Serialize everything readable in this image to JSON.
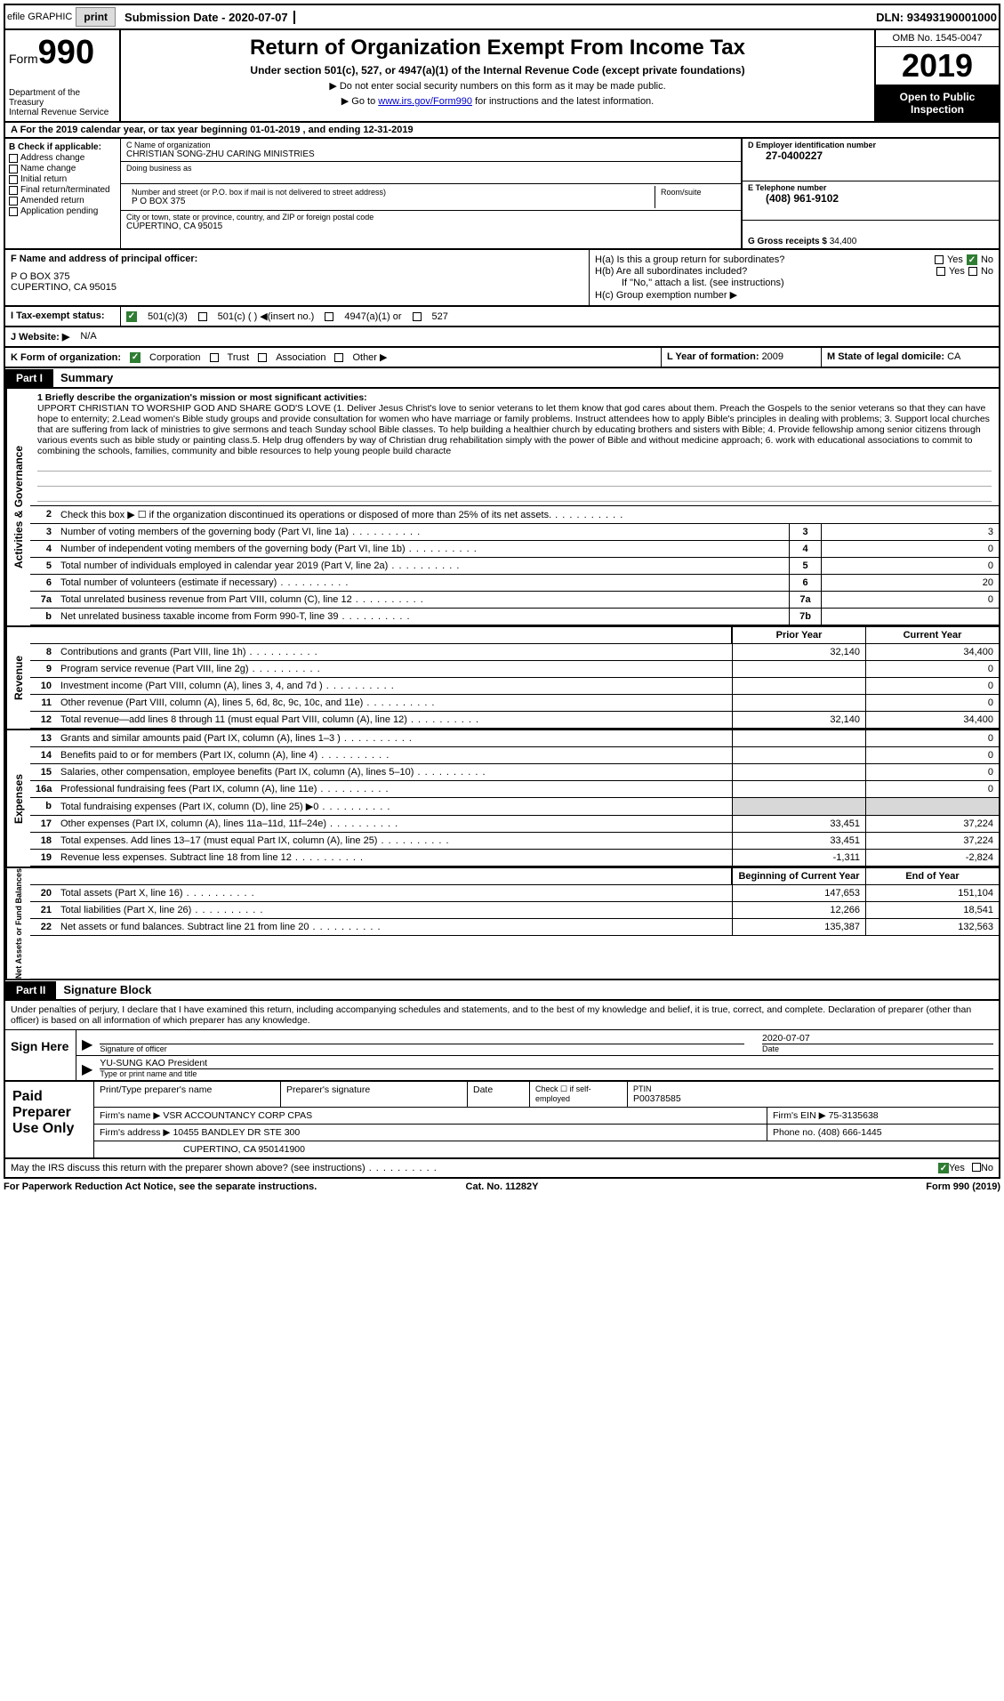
{
  "topbar": {
    "efile": "efile GRAPHIC",
    "print": "print",
    "submission_label": "Submission Date - ",
    "submission_date": "2020-07-07",
    "dln_label": "DLN: ",
    "dln": "93493190001000"
  },
  "header": {
    "form_label": "Form",
    "form_number": "990",
    "dept1": "Department of the Treasury",
    "dept2": "Internal Revenue Service",
    "title": "Return of Organization Exempt From Income Tax",
    "subtitle": "Under section 501(c), 527, or 4947(a)(1) of the Internal Revenue Code (except private foundations)",
    "note1": "▶ Do not enter social security numbers on this form as it may be made public.",
    "note2_pre": "▶ Go to ",
    "note2_link": "www.irs.gov/Form990",
    "note2_post": " for instructions and the latest information.",
    "omb": "OMB No. 1545-0047",
    "year": "2019",
    "inspection": "Open to Public Inspection"
  },
  "rowA": "A   For the 2019 calendar year, or tax year beginning 01-01-2019    , and ending 12-31-2019",
  "colB": {
    "header": "B Check if applicable:",
    "items": [
      "Address change",
      "Name change",
      "Initial return",
      "Final return/terminated",
      "Amended return",
      "Application pending"
    ]
  },
  "colC": {
    "name_label": "C Name of organization",
    "name": "CHRISTIAN SONG-ZHU CARING MINISTRIES",
    "dba_label": "Doing business as",
    "addr_label": "Number and street (or P.O. box if mail is not delivered to street address)",
    "addr": "P O BOX 375",
    "room_label": "Room/suite",
    "city_label": "City or town, state or province, country, and ZIP or foreign postal code",
    "city": "CUPERTINO, CA  95015"
  },
  "colD": {
    "ein_label": "D Employer identification number",
    "ein": "27-0400227",
    "phone_label": "E Telephone number",
    "phone": "(408) 961-9102",
    "gross_label": "G Gross receipts $ ",
    "gross": "34,400"
  },
  "rowF": {
    "label": "F  Name and address of principal officer:",
    "line1": "P O BOX 375",
    "line2": "CUPERTINO, CA  95015"
  },
  "rowH": {
    "ha": "H(a)  Is this a group return for subordinates?",
    "hb": "H(b)  Are all subordinates included?",
    "hb_note": "If \"No,\" attach a list. (see instructions)",
    "hc": "H(c)  Group exemption number ▶",
    "yes": "Yes",
    "no": "No"
  },
  "rowI": {
    "label": "I   Tax-exempt status:",
    "opt1": "501(c)(3)",
    "opt2": "501(c) (   ) ◀(insert no.)",
    "opt3": "4947(a)(1) or",
    "opt4": "527"
  },
  "rowJ": {
    "label": "J   Website: ▶",
    "value": "N/A"
  },
  "rowK": {
    "label": "K Form of organization:",
    "opts": [
      "Corporation",
      "Trust",
      "Association",
      "Other ▶"
    ],
    "L_label": "L Year of formation: ",
    "L_val": "2009",
    "M_label": "M State of legal domicile: ",
    "M_val": "CA"
  },
  "parts": {
    "p1": "Part I",
    "p1_title": "Summary",
    "p2": "Part II",
    "p2_title": "Signature Block"
  },
  "vtabs": {
    "ag": "Activities & Governance",
    "rev": "Revenue",
    "exp": "Expenses",
    "na": "Net Assets or Fund Balances"
  },
  "mission": {
    "label": "1   Briefly describe the organization's mission or most significant activities:",
    "text": "UPPORT CHRISTIAN TO WORSHIP GOD AND SHARE GOD'S LOVE (1. Deliver Jesus Christ's love to senior veterans to let them know that god cares about them. Preach the Gospels to the senior veterans so that they can have hope to enternity; 2.Lead women's Bible study groups and provide consultation for women who have marriage or family problems. Instruct attendees how to apply Bible's principles in dealing with problems; 3. Support local churches that are suffering from lack of ministries to give sermons and teach Sunday school Bible classes. To help building a healthier church by educating brothers and sisters with Bible; 4. Provide fellowship among senior citizens through various events such as bible study or painting class.5. Help drug offenders by way of Christian drug rehabilitation simply with the power of Bible and without medicine approach; 6. work with educational associations to commit to combining the schools, families, community and bible resources to help young people build characte"
  },
  "gov_rows": [
    {
      "n": "2",
      "desc": "Check this box ▶ ☐ if the organization discontinued its operations or disposed of more than 25% of its net assets.",
      "box": "",
      "val": ""
    },
    {
      "n": "3",
      "desc": "Number of voting members of the governing body (Part VI, line 1a)",
      "box": "3",
      "val": "3"
    },
    {
      "n": "4",
      "desc": "Number of independent voting members of the governing body (Part VI, line 1b)",
      "box": "4",
      "val": "0"
    },
    {
      "n": "5",
      "desc": "Total number of individuals employed in calendar year 2019 (Part V, line 2a)",
      "box": "5",
      "val": "0"
    },
    {
      "n": "6",
      "desc": "Total number of volunteers (estimate if necessary)",
      "box": "6",
      "val": "20"
    },
    {
      "n": "7a",
      "desc": "Total unrelated business revenue from Part VIII, column (C), line 12",
      "box": "7a",
      "val": "0"
    },
    {
      "n": "b",
      "desc": "Net unrelated business taxable income from Form 990-T, line 39",
      "box": "7b",
      "val": ""
    }
  ],
  "col_headers": {
    "prior": "Prior Year",
    "current": "Current Year"
  },
  "revenue_rows": [
    {
      "n": "8",
      "desc": "Contributions and grants (Part VIII, line 1h)",
      "v1": "32,140",
      "v2": "34,400"
    },
    {
      "n": "9",
      "desc": "Program service revenue (Part VIII, line 2g)",
      "v1": "",
      "v2": "0"
    },
    {
      "n": "10",
      "desc": "Investment income (Part VIII, column (A), lines 3, 4, and 7d )",
      "v1": "",
      "v2": "0"
    },
    {
      "n": "11",
      "desc": "Other revenue (Part VIII, column (A), lines 5, 6d, 8c, 9c, 10c, and 11e)",
      "v1": "",
      "v2": "0"
    },
    {
      "n": "12",
      "desc": "Total revenue—add lines 8 through 11 (must equal Part VIII, column (A), line 12)",
      "v1": "32,140",
      "v2": "34,400"
    }
  ],
  "expense_rows": [
    {
      "n": "13",
      "desc": "Grants and similar amounts paid (Part IX, column (A), lines 1–3 )",
      "v1": "",
      "v2": "0"
    },
    {
      "n": "14",
      "desc": "Benefits paid to or for members (Part IX, column (A), line 4)",
      "v1": "",
      "v2": "0"
    },
    {
      "n": "15",
      "desc": "Salaries, other compensation, employee benefits (Part IX, column (A), lines 5–10)",
      "v1": "",
      "v2": "0"
    },
    {
      "n": "16a",
      "desc": "Professional fundraising fees (Part IX, column (A), line 11e)",
      "v1": "",
      "v2": "0"
    },
    {
      "n": "b",
      "desc": "Total fundraising expenses (Part IX, column (D), line 25) ▶0",
      "v1": "grey",
      "v2": "grey"
    },
    {
      "n": "17",
      "desc": "Other expenses (Part IX, column (A), lines 11a–11d, 11f–24e)",
      "v1": "33,451",
      "v2": "37,224"
    },
    {
      "n": "18",
      "desc": "Total expenses. Add lines 13–17 (must equal Part IX, column (A), line 25)",
      "v1": "33,451",
      "v2": "37,224"
    },
    {
      "n": "19",
      "desc": "Revenue less expenses. Subtract line 18 from line 12",
      "v1": "-1,311",
      "v2": "-2,824"
    }
  ],
  "na_headers": {
    "begin": "Beginning of Current Year",
    "end": "End of Year"
  },
  "na_rows": [
    {
      "n": "20",
      "desc": "Total assets (Part X, line 16)",
      "v1": "147,653",
      "v2": "151,104"
    },
    {
      "n": "21",
      "desc": "Total liabilities (Part X, line 26)",
      "v1": "12,266",
      "v2": "18,541"
    },
    {
      "n": "22",
      "desc": "Net assets or fund balances. Subtract line 21 from line 20",
      "v1": "135,387",
      "v2": "132,563"
    }
  ],
  "sig": {
    "perjury": "Under penalties of perjury, I declare that I have examined this return, including accompanying schedules and statements, and to the best of my knowledge and belief, it is true, correct, and complete. Declaration of preparer (other than officer) is based on all information of which preparer has any knowledge.",
    "sign_here": "Sign Here",
    "sig_officer": "Signature of officer",
    "date_label": "Date",
    "date": "2020-07-07",
    "name_title": "YU-SUNG KAO  President",
    "name_title_label": "Type or print name and title"
  },
  "paid": {
    "label": "Paid Preparer Use Only",
    "h1": "Print/Type preparer's name",
    "h2": "Preparer's signature",
    "h3": "Date",
    "h4_a": "Check ☐ if self-employed",
    "h4_b": "PTIN",
    "ptin": "P00378585",
    "firm_name_label": "Firm's name    ▶ ",
    "firm_name": "VSR ACCOUNTANCY CORP CPAS",
    "firm_ein_label": "Firm's EIN ▶ ",
    "firm_ein": "75-3135638",
    "firm_addr_label": "Firm's address ▶ ",
    "firm_addr1": "10455 BANDLEY DR STE 300",
    "firm_addr2": "CUPERTINO, CA  950141900",
    "phone_label": "Phone no. ",
    "phone": "(408) 666-1445"
  },
  "discuss": {
    "text": "May the IRS discuss this return with the preparer shown above? (see instructions)",
    "yes": "Yes",
    "no": "No"
  },
  "footer": {
    "left": "For Paperwork Reduction Act Notice, see the separate instructions.",
    "mid": "Cat. No. 11282Y",
    "right": "Form 990 (2019)"
  }
}
